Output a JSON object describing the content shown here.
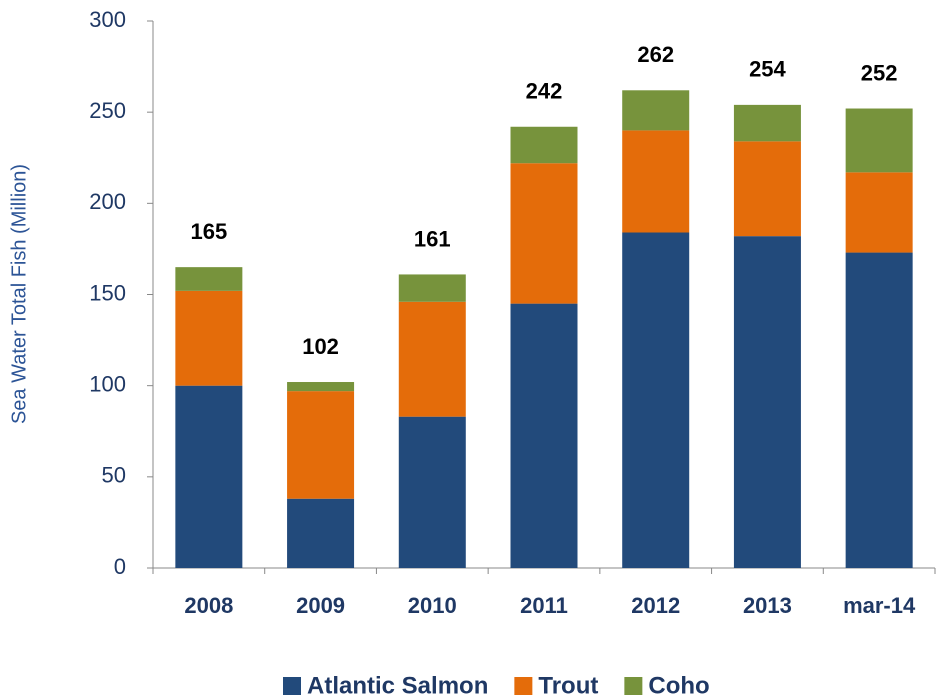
{
  "chart_data": {
    "type": "stacked_bar",
    "y_label": "Sea Water Total Fish (Million)",
    "categories": [
      "2008",
      "2009",
      "2010",
      "2011",
      "2012",
      "2013",
      "mar-14"
    ],
    "series": [
      {
        "name": "Atlantic Salmon",
        "color": "#224a7b",
        "values": [
          100,
          38,
          83,
          145,
          184,
          182,
          173
        ]
      },
      {
        "name": "Trout",
        "color": "#e46c0a",
        "values": [
          52,
          59,
          63,
          77,
          56,
          52,
          44
        ]
      },
      {
        "name": "Coho",
        "color": "#77933c",
        "values": [
          13,
          5,
          15,
          20,
          22,
          20,
          35
        ]
      }
    ],
    "total_labels": [
      165,
      102,
      161,
      242,
      262,
      254,
      252
    ],
    "ylim": [
      0,
      300
    ],
    "yticks": [
      0,
      50,
      100,
      150,
      200,
      250,
      300
    ],
    "legend": "bottom"
  }
}
